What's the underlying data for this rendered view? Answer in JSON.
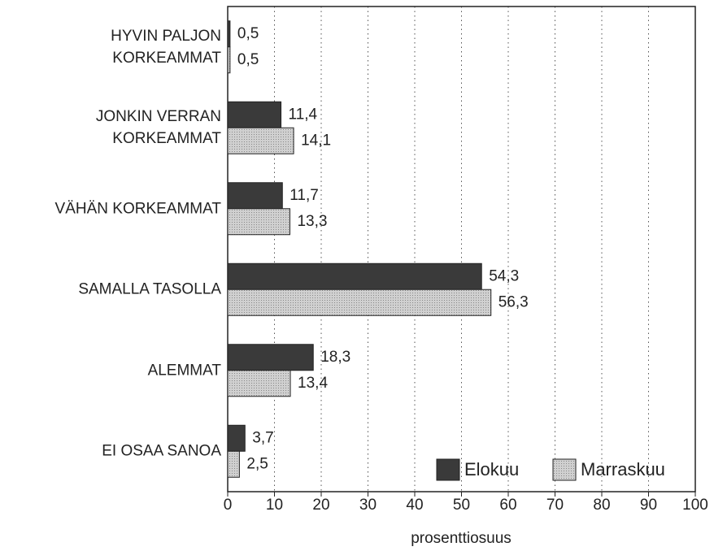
{
  "chart_data": {
    "type": "bar",
    "orientation": "horizontal",
    "categories": [
      "HYVIN PALJON\nKORKEAMMAT",
      "JONKIN VERRAN\nKORKEAMMAT",
      "VÄHÄN KORKEAMMAT",
      "SAMALLA TASOLLA",
      "ALEMMAT",
      "EI OSAA SANOA"
    ],
    "series": [
      {
        "name": "Elokuu",
        "color": "#3a3a3a",
        "values": [
          0.5,
          11.4,
          11.7,
          54.3,
          18.3,
          3.7
        ],
        "value_labels": [
          "0,5",
          "11,4",
          "11,7",
          "54,3",
          "18,3",
          "3,7"
        ]
      },
      {
        "name": "Marraskuu",
        "color": "#c4c4c4",
        "values": [
          0.5,
          14.1,
          13.3,
          56.3,
          13.4,
          2.5
        ],
        "value_labels": [
          "0,5",
          "14,1",
          "13,3",
          "56,3",
          "13,4",
          "2,5"
        ]
      }
    ],
    "xlabel": "prosenttiosuus",
    "xlim": [
      0,
      100
    ],
    "xticks": [
      0,
      10,
      20,
      30,
      40,
      50,
      60,
      70,
      80,
      90,
      100
    ],
    "grid": true,
    "legend": "lower right"
  }
}
